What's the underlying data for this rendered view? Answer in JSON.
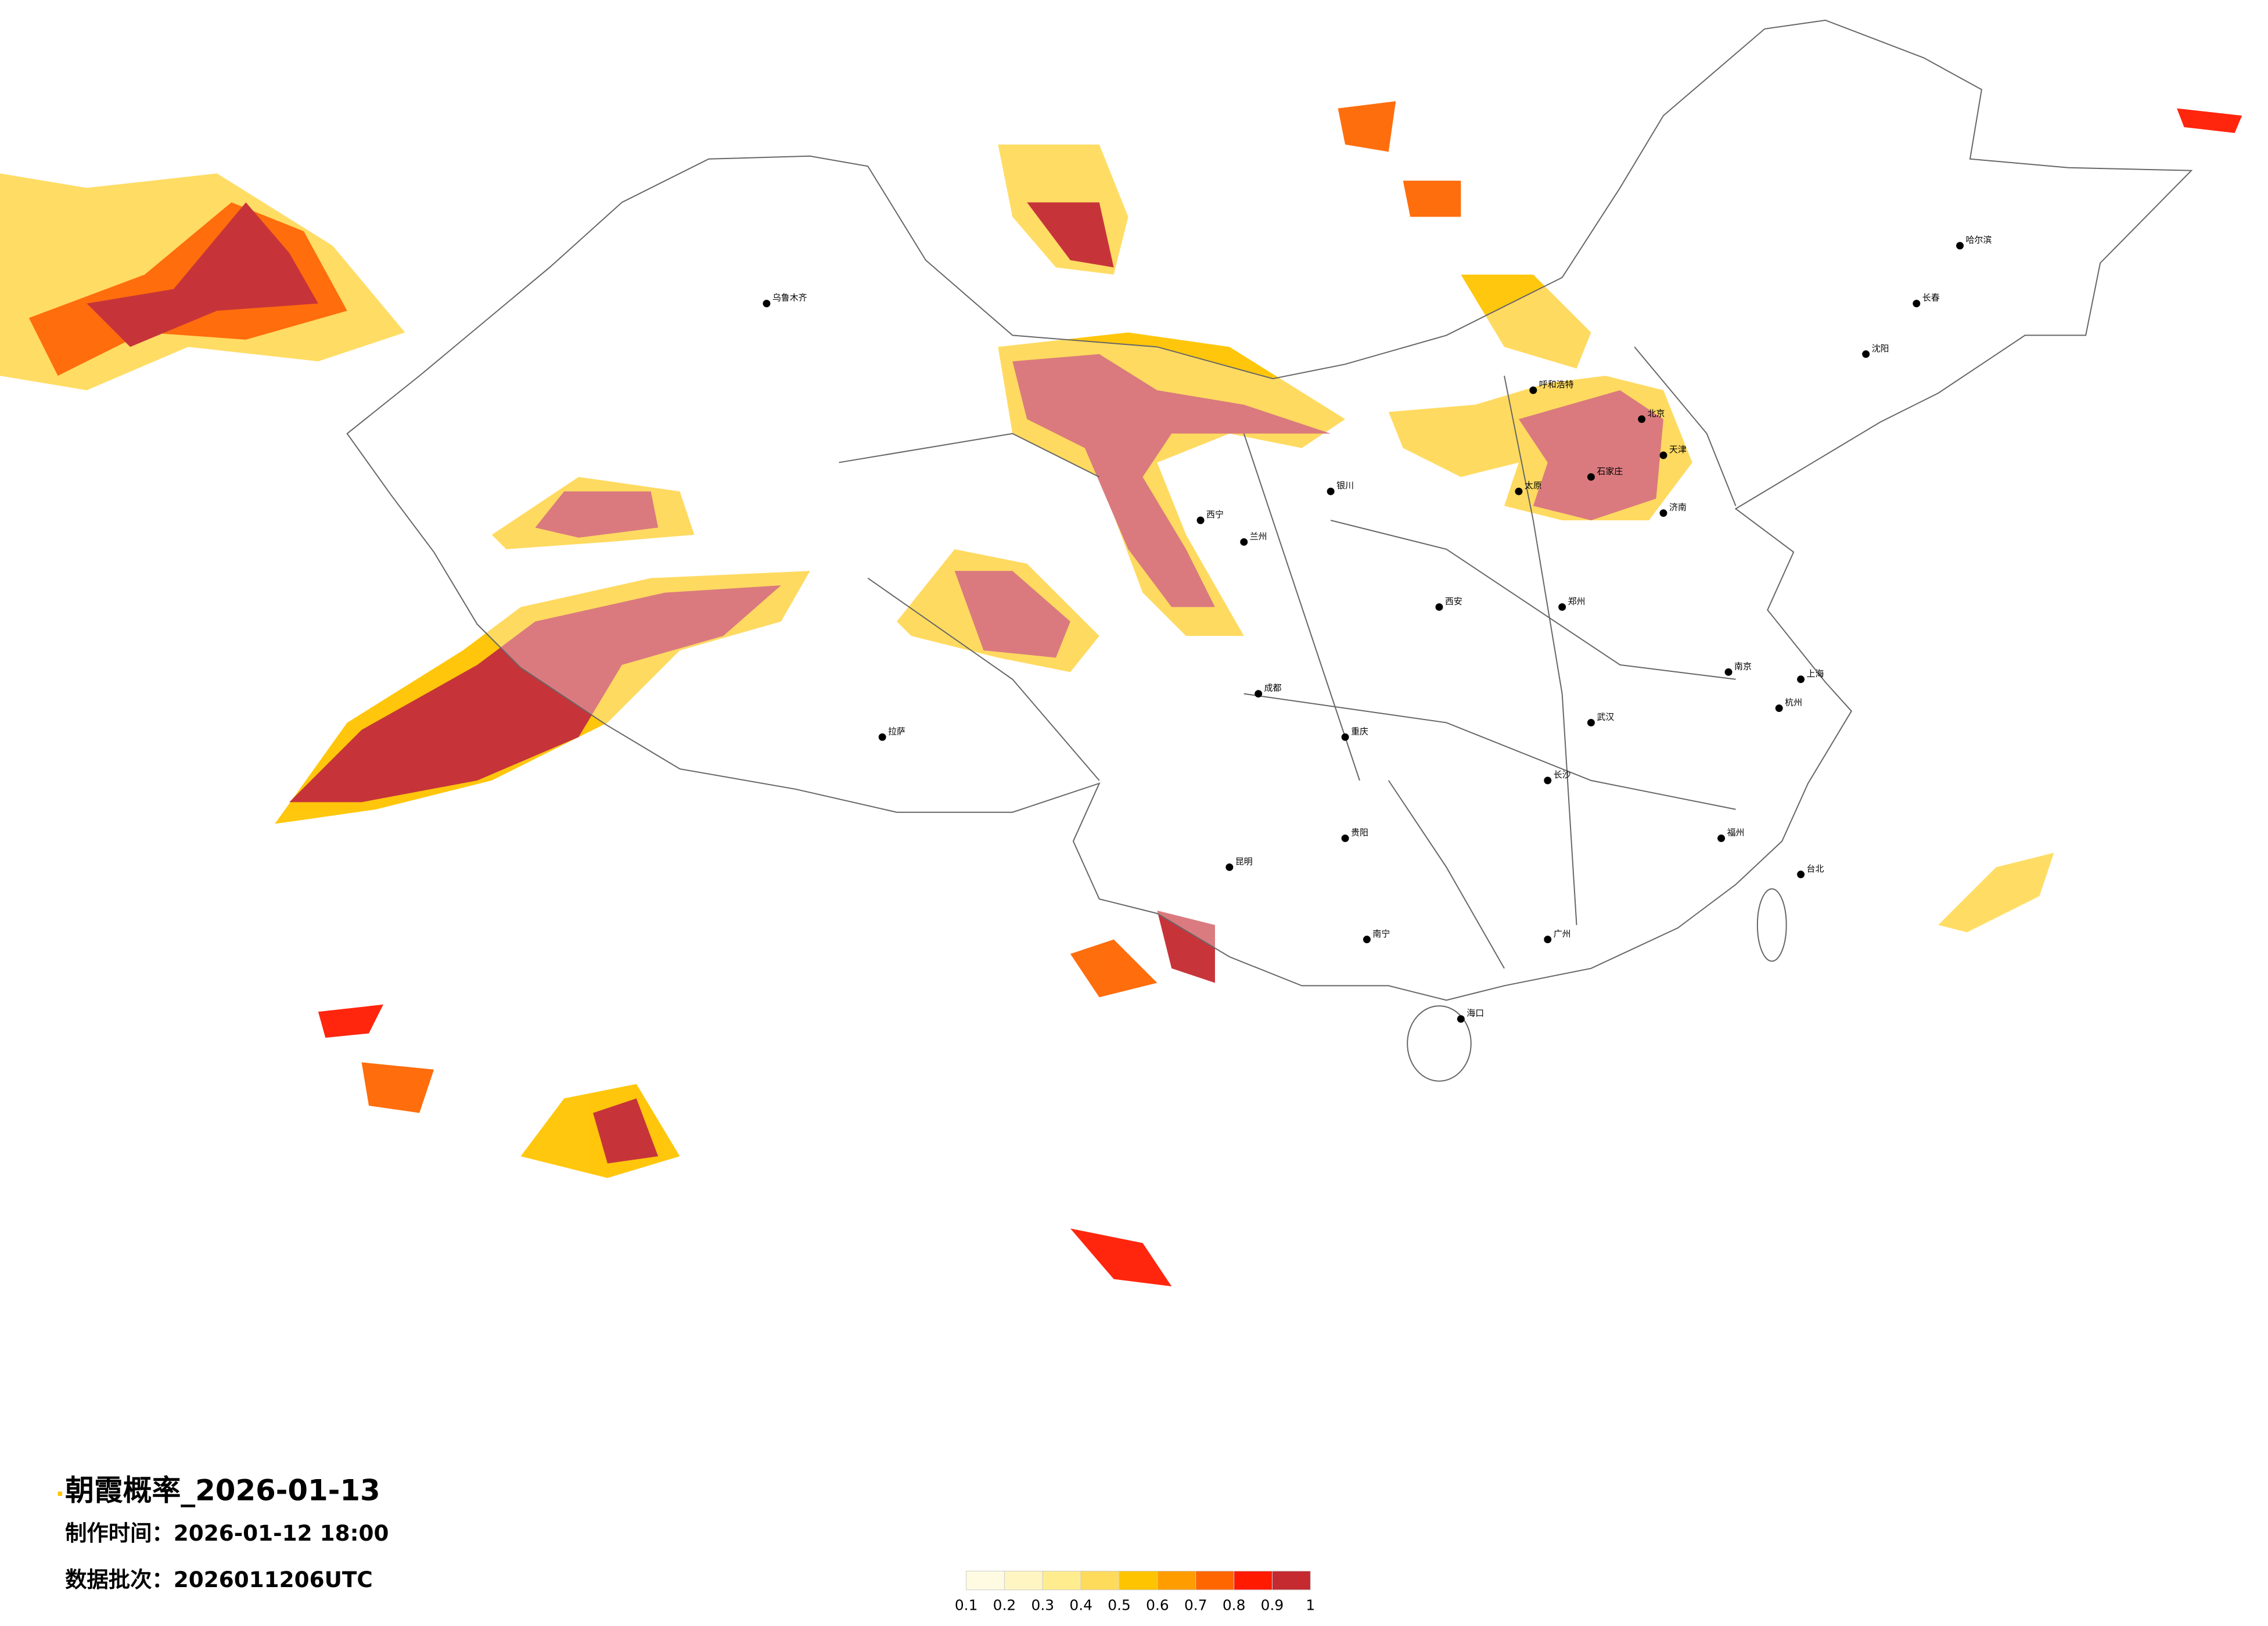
{
  "title": "朝霞概率_2026-01-13",
  "info": [
    "制作时间：2026-01-12 18:00",
    "数据批次：2026011206UTC"
  ],
  "legend": {
    "ticks": [
      0.1,
      0.2,
      0.3,
      0.4,
      0.5,
      0.6,
      0.7,
      0.8,
      0.9,
      1
    ],
    "colors": [
      "#fffbe3",
      "#fff5c2",
      "#ffec8f",
      "#ffdb5c",
      "#ffc400",
      "#ff9c00",
      "#ff6600",
      "#ff1a00",
      "#c42a30"
    ]
  },
  "cities": [
    "北京",
    "天津",
    "石家庄",
    "济南",
    "上海",
    "南京",
    "武汉",
    "长沙",
    "广州",
    "成都",
    "重庆",
    "西安",
    "兰州",
    "西宁",
    "乌鲁木齐",
    "拉萨",
    "昆明",
    "哈尔滨",
    "长春",
    "沈阳",
    "呼和浩特",
    "南宁",
    "海口",
    "台北",
    "福州",
    "杭州",
    "郑州",
    "太原",
    "贵阳",
    "银川"
  ]
}
